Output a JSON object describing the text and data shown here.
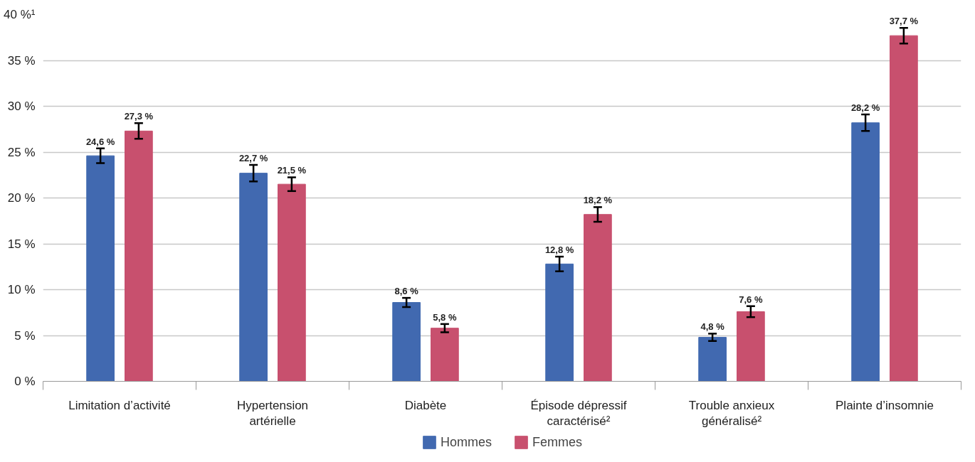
{
  "chart_data": {
    "type": "bar",
    "categories": [
      "Limitation d’activité",
      "Hypertension\nartérielle",
      "Diabète",
      "Épisode dépressif\ncaractérisé²",
      "Trouble anxieux\ngénéralisé²",
      "Plainte d’insomnie"
    ],
    "series": [
      {
        "name": "Hommes",
        "color": "#4169b0",
        "values": [
          24.6,
          22.7,
          8.6,
          12.8,
          4.8,
          28.2
        ],
        "errors": [
          0.8,
          0.9,
          0.5,
          0.8,
          0.4,
          0.9
        ],
        "value_labels": [
          "24,6 %",
          "22,7 %",
          "8,6 %",
          "12,8 %",
          "4,8 %",
          "28,2 %"
        ]
      },
      {
        "name": "Femmes",
        "color": "#c8506e",
        "values": [
          27.3,
          21.5,
          5.8,
          18.2,
          7.6,
          37.7
        ],
        "errors": [
          0.85,
          0.75,
          0.45,
          0.8,
          0.6,
          0.85
        ],
        "value_labels": [
          "27,3 %",
          "21,5 %",
          "5,8 %",
          "18,2 %",
          "7,6 %",
          "37,7 %"
        ]
      }
    ],
    "ylim": [
      0,
      40
    ],
    "yticks": [
      {
        "value": 0,
        "label": "0 %"
      },
      {
        "value": 5,
        "label": "5 %"
      },
      {
        "value": 10,
        "label": "10 %"
      },
      {
        "value": 15,
        "label": "15 %"
      },
      {
        "value": 20,
        "label": "20 %"
      },
      {
        "value": 25,
        "label": "25 %"
      },
      {
        "value": 30,
        "label": "30 %"
      },
      {
        "value": 35,
        "label": "35 %"
      },
      {
        "value": 40,
        "label": "40 %¹"
      }
    ],
    "grid": "y",
    "legend": "bottom"
  }
}
